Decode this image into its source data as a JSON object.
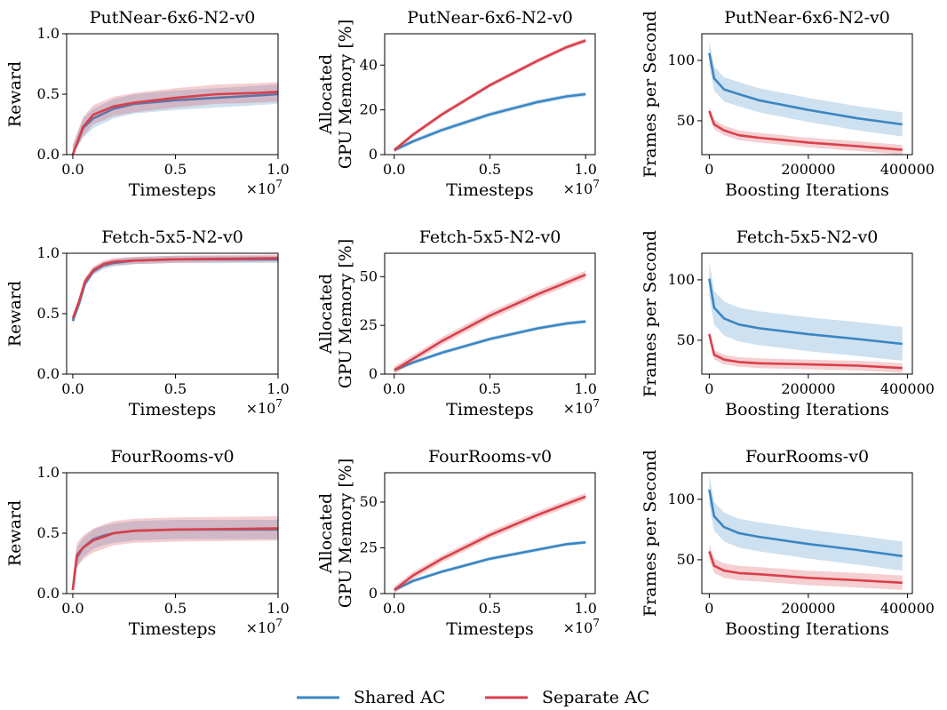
{
  "colors": {
    "shared": "#3b86c2",
    "separate": "#d9404a",
    "axis": "#000000"
  },
  "legend": {
    "items": [
      {
        "key": "shared",
        "label": "Shared AC"
      },
      {
        "key": "separate",
        "label": "Separate AC"
      }
    ]
  },
  "chart_data": [
    {
      "type": "line",
      "title": "PutNear-6x6-N2-v0",
      "xlabel": "Timesteps",
      "ylabel": [
        "Reward"
      ],
      "x_exponent": "×10^7",
      "xlim": [
        -0.03,
        1.0
      ],
      "ylim": [
        0.0,
        1.0
      ],
      "xticks": [
        0.0,
        0.5,
        1.0
      ],
      "yticks": [
        0.0,
        0.5,
        1.0
      ],
      "x": [
        0.0,
        0.05,
        0.1,
        0.2,
        0.3,
        0.5,
        0.7,
        0.9,
        1.0
      ],
      "series": [
        {
          "name": "Shared AC",
          "values": [
            0.0,
            0.22,
            0.3,
            0.38,
            0.42,
            0.45,
            0.47,
            0.49,
            0.5
          ],
          "band": 0.08
        },
        {
          "name": "Separate AC",
          "values": [
            0.0,
            0.23,
            0.33,
            0.4,
            0.43,
            0.47,
            0.5,
            0.51,
            0.52
          ],
          "band": 0.08
        }
      ]
    },
    {
      "type": "line",
      "title": "PutNear-6x6-N2-v0",
      "xlabel": "Timesteps",
      "ylabel": [
        "Allocated",
        "GPU Memory [%]"
      ],
      "x_exponent": "×10^7",
      "xlim": [
        -0.05,
        1.05
      ],
      "ylim": [
        0,
        54
      ],
      "xticks": [
        0.0,
        0.5,
        1.0
      ],
      "yticks": [
        0,
        20,
        40
      ],
      "x": [
        0.0,
        0.1,
        0.25,
        0.5,
        0.75,
        0.9,
        1.0
      ],
      "series": [
        {
          "name": "Shared AC",
          "values": [
            2,
            6,
            11,
            18,
            23.5,
            26,
            27
          ],
          "band": 1.0
        },
        {
          "name": "Separate AC",
          "values": [
            2,
            9,
            18,
            31,
            42,
            48,
            51
          ],
          "band": 1.0
        }
      ]
    },
    {
      "type": "line",
      "title": "PutNear-6x6-N2-v0",
      "xlabel": "Boosting Iterations",
      "ylabel": [
        "Frames per Second"
      ],
      "xlim": [
        -15000,
        410000
      ],
      "ylim": [
        22,
        122
      ],
      "xticks": [
        0,
        200000,
        400000
      ],
      "yticks": [
        50,
        100
      ],
      "x": [
        0,
        10000,
        30000,
        60000,
        100000,
        200000,
        300000,
        390000
      ],
      "series": [
        {
          "name": "Shared AC",
          "values": [
            106,
            85,
            76,
            72,
            67,
            59,
            52,
            47
          ],
          "band": 10
        },
        {
          "name": "Separate AC",
          "values": [
            58,
            47,
            42,
            38,
            36,
            32,
            29,
            26
          ],
          "band": 4
        }
      ]
    },
    {
      "type": "line",
      "title": "Fetch-5x5-N2-v0",
      "xlabel": "Timesteps",
      "ylabel": [
        "Reward"
      ],
      "x_exponent": "×10^7",
      "xlim": [
        -0.03,
        1.0
      ],
      "ylim": [
        0.0,
        1.0
      ],
      "xticks": [
        0.0,
        0.5,
        1.0
      ],
      "yticks": [
        0.0,
        0.5,
        1.0
      ],
      "x": [
        0.0,
        0.03,
        0.06,
        0.1,
        0.15,
        0.2,
        0.3,
        0.5,
        1.0
      ],
      "series": [
        {
          "name": "Shared AC",
          "values": [
            0.44,
            0.58,
            0.75,
            0.85,
            0.9,
            0.92,
            0.94,
            0.95,
            0.95
          ],
          "band": 0.03
        },
        {
          "name": "Separate AC",
          "values": [
            0.46,
            0.6,
            0.77,
            0.86,
            0.91,
            0.93,
            0.94,
            0.95,
            0.96
          ],
          "band": 0.03
        }
      ]
    },
    {
      "type": "line",
      "title": "Fetch-5x5-N2-v0",
      "xlabel": "Timesteps",
      "ylabel": [
        "Allocated",
        "GPU Memory [%]"
      ],
      "x_exponent": "×10^7",
      "xlim": [
        -0.05,
        1.05
      ],
      "ylim": [
        0,
        62
      ],
      "xticks": [
        0.0,
        0.5,
        1.0
      ],
      "yticks": [
        0,
        25,
        50
      ],
      "x": [
        0.0,
        0.1,
        0.25,
        0.5,
        0.75,
        0.9,
        1.0
      ],
      "series": [
        {
          "name": "Shared AC",
          "values": [
            2,
            6,
            11,
            18,
            23.5,
            26,
            27
          ],
          "band": 1.0
        },
        {
          "name": "Separate AC",
          "values": [
            2,
            8,
            17,
            30,
            41,
            47,
            51
          ],
          "band": 2
        }
      ]
    },
    {
      "type": "line",
      "title": "Fetch-5x5-N2-v0",
      "xlabel": "Boosting Iterations",
      "ylabel": [
        "Frames per Second"
      ],
      "xlim": [
        -15000,
        410000
      ],
      "ylim": [
        22,
        122
      ],
      "xticks": [
        0,
        200000,
        400000
      ],
      "yticks": [
        50,
        100
      ],
      "x": [
        0,
        10000,
        30000,
        60000,
        100000,
        200000,
        300000,
        390000
      ],
      "series": [
        {
          "name": "Shared AC",
          "values": [
            101,
            77,
            68,
            63,
            60,
            55,
            51,
            47
          ],
          "band": 14
        },
        {
          "name": "Separate AC",
          "values": [
            55,
            38,
            34,
            32,
            31,
            30,
            29,
            27
          ],
          "band": 4
        }
      ]
    },
    {
      "type": "line",
      "title": "FourRooms-v0",
      "xlabel": "Timesteps",
      "ylabel": [
        "Reward"
      ],
      "x_exponent": "×10^7",
      "xlim": [
        -0.03,
        1.0
      ],
      "ylim": [
        0.0,
        1.0
      ],
      "xticks": [
        0.0,
        0.5,
        1.0
      ],
      "yticks": [
        0.0,
        0.5,
        1.0
      ],
      "x": [
        0.0,
        0.02,
        0.05,
        0.1,
        0.15,
        0.2,
        0.3,
        0.5,
        1.0
      ],
      "series": [
        {
          "name": "Shared AC",
          "values": [
            0.03,
            0.3,
            0.38,
            0.45,
            0.48,
            0.5,
            0.52,
            0.53,
            0.53
          ],
          "band": 0.08
        },
        {
          "name": "Separate AC",
          "values": [
            0.03,
            0.32,
            0.38,
            0.44,
            0.47,
            0.5,
            0.52,
            0.53,
            0.54
          ],
          "band": 0.1
        }
      ]
    },
    {
      "type": "line",
      "title": "FourRooms-v0",
      "xlabel": "Timesteps",
      "ylabel": [
        "Allocated",
        "GPU Memory [%]"
      ],
      "x_exponent": "×10^7",
      "xlim": [
        -0.05,
        1.05
      ],
      "ylim": [
        0,
        66
      ],
      "xticks": [
        0.0,
        0.5,
        1.0
      ],
      "yticks": [
        0,
        25,
        50
      ],
      "x": [
        0.0,
        0.1,
        0.25,
        0.5,
        0.75,
        0.9,
        1.0
      ],
      "series": [
        {
          "name": "Shared AC",
          "values": [
            2,
            7,
            12,
            19,
            24,
            27,
            28
          ],
          "band": 1.0
        },
        {
          "name": "Separate AC",
          "values": [
            2,
            10,
            19,
            32,
            43,
            49,
            53
          ],
          "band": 2
        }
      ]
    },
    {
      "type": "line",
      "title": "FourRooms-v0",
      "xlabel": "Boosting Iterations",
      "ylabel": [
        "Frames per Second"
      ],
      "xlim": [
        -15000,
        410000
      ],
      "ylim": [
        22,
        122
      ],
      "xticks": [
        0,
        200000,
        400000
      ],
      "yticks": [
        50,
        100
      ],
      "x": [
        0,
        10000,
        30000,
        60000,
        100000,
        200000,
        300000,
        390000
      ],
      "series": [
        {
          "name": "Shared AC",
          "values": [
            108,
            86,
            77,
            72,
            69,
            63,
            58,
            53
          ],
          "band": 12
        },
        {
          "name": "Separate AC",
          "values": [
            57,
            45,
            41,
            39,
            38,
            35,
            33,
            31
          ],
          "band": 6
        }
      ]
    }
  ]
}
